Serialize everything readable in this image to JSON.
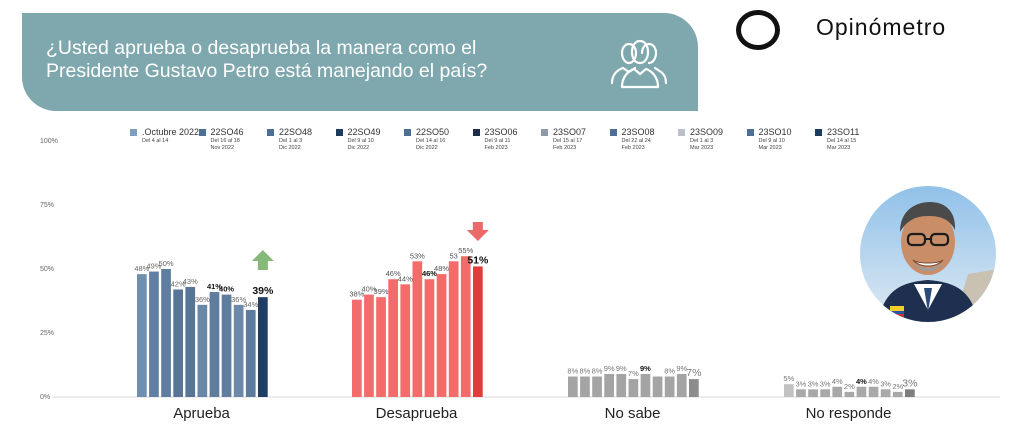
{
  "header": {
    "title_line1": "¿Usted aprueba o desaprueba la manera como el",
    "title_line2": "Presidente Gustavo Petro está manejando el país?",
    "icon": "people-group-icon"
  },
  "brand": {
    "name": "Opinómetro",
    "logo_icon": "ring-logo"
  },
  "photo": {
    "icon": "portrait-photo"
  },
  "chart_data": {
    "type": "bar",
    "categories": [
      "Aprueba",
      "Desaprueba",
      "No sabe",
      "No responde"
    ],
    "ylim": [
      0,
      100
    ],
    "yticks": [
      "0%",
      "25%",
      "50%",
      "75%",
      "100%"
    ],
    "series": [
      {
        "name": ".Octubre 2022",
        "date": "Del 4 al 14",
        "values": [
          48,
          38,
          8,
          5
        ]
      },
      {
        "name": "22SO46",
        "date": "Del 16 al 18 Nov 2022",
        "values": [
          49,
          40,
          8,
          3
        ]
      },
      {
        "name": "22SO48",
        "date": "Del 1 al 3 Dic 2022",
        "values": [
          50,
          39,
          8,
          3
        ]
      },
      {
        "name": "22SO49",
        "date": "Del 9 al 10 Dic 2022",
        "values": [
          42,
          46,
          9,
          3
        ]
      },
      {
        "name": "22SO50",
        "date": "Del 14 al 16 Dic 2022",
        "values": [
          43,
          44,
          9,
          4
        ]
      },
      {
        "name": "23SO06",
        "date": "Del 9 al 11 Feb 2023",
        "values": [
          36,
          53,
          7,
          2
        ]
      },
      {
        "name": "23SO07",
        "date": "Del 15 al 17 Feb 2023",
        "values": [
          41,
          46,
          9,
          4
        ]
      },
      {
        "name": "23SO08",
        "date": "Del 22 al 24 Feb 2023",
        "values": [
          40,
          48,
          8,
          4
        ]
      },
      {
        "name": "23SO09",
        "date": "Del 1 al 3 Mar 2023",
        "values": [
          36,
          53,
          8,
          3
        ]
      },
      {
        "name": "23SO10",
        "date": "Del 9 al 10 Mar 2023",
        "values": [
          34,
          55,
          9,
          2
        ]
      },
      {
        "name": "23SO11",
        "date": "Del 14 al 15 Mar 2023",
        "values": [
          39,
          51,
          7,
          3
        ]
      }
    ],
    "value_labels": [
      [
        "48%",
        "49%",
        "50%",
        "42%",
        "43%",
        "36%",
        "41%",
        "40%",
        "36%",
        "34%",
        "39%"
      ],
      [
        "38%",
        "40%",
        "39%",
        "46%",
        "44%",
        "53%",
        "46%",
        "48%",
        "53",
        "55%",
        "51%"
      ],
      [
        "8%",
        "8%",
        "8%",
        "9%",
        "9%",
        "7%",
        "9%",
        "",
        "8%",
        "9%",
        "7%"
      ],
      [
        "5%",
        "3%",
        "3%",
        "3%",
        "4%",
        "2%",
        "4%",
        "4%",
        "3%",
        "2%",
        "3%"
      ]
    ],
    "bold_labels": [
      [
        6,
        7,
        10
      ],
      [
        6,
        10
      ],
      [
        6
      ],
      [
        6
      ]
    ],
    "change_arrows": [
      {
        "category": "Aprueba",
        "direction": "up",
        "color": "#86b877"
      },
      {
        "category": "Desaprueba",
        "direction": "down",
        "color": "#ea6a6a"
      }
    ],
    "colors": {
      "Aprueba": [
        "#6f8fb0",
        "#617fa1",
        "#5e7da0",
        "#577597",
        "#577597",
        "#6a87a8",
        "#5f7d9e",
        "#5f7d9e",
        "#6c89aa",
        "#5d7b9d",
        "#1f3e63"
      ],
      "Desaprueba": [
        "#f36b6b",
        "#f36b6b",
        "#f36b6b",
        "#f36b6b",
        "#f36b6b",
        "#f36b6b",
        "#f36b6b",
        "#f36b6b",
        "#f36b6b",
        "#f36b6b",
        "#e23b3b"
      ],
      "No sabe": [
        "#a4a4a4",
        "#a4a4a4",
        "#a4a4a4",
        "#a4a4a4",
        "#a4a4a4",
        "#a4a4a4",
        "#a4a4a4",
        "#a4a4a4",
        "#a4a4a4",
        "#a4a4a4",
        "#8c8c8c"
      ],
      "No responde": [
        "#c2c2c2",
        "#a8a8a8",
        "#a8a8a8",
        "#a8a8a8",
        "#a8a8a8",
        "#a8a8a8",
        "#a8a8a8",
        "#a8a8a8",
        "#a8a8a8",
        "#a8a8a8",
        "#7d7d7d"
      ],
      "legend": [
        "#7d9fbd",
        "#4d6e95",
        "#4d6e95",
        "#1d3a5f",
        "#4d6e95",
        "#1f2d4d",
        "#8e9aa8",
        "#4d6e95",
        "#b9c0c8",
        "#4d6e95",
        "#1d3a5f"
      ]
    },
    "grid": false,
    "legend_position": "top"
  }
}
